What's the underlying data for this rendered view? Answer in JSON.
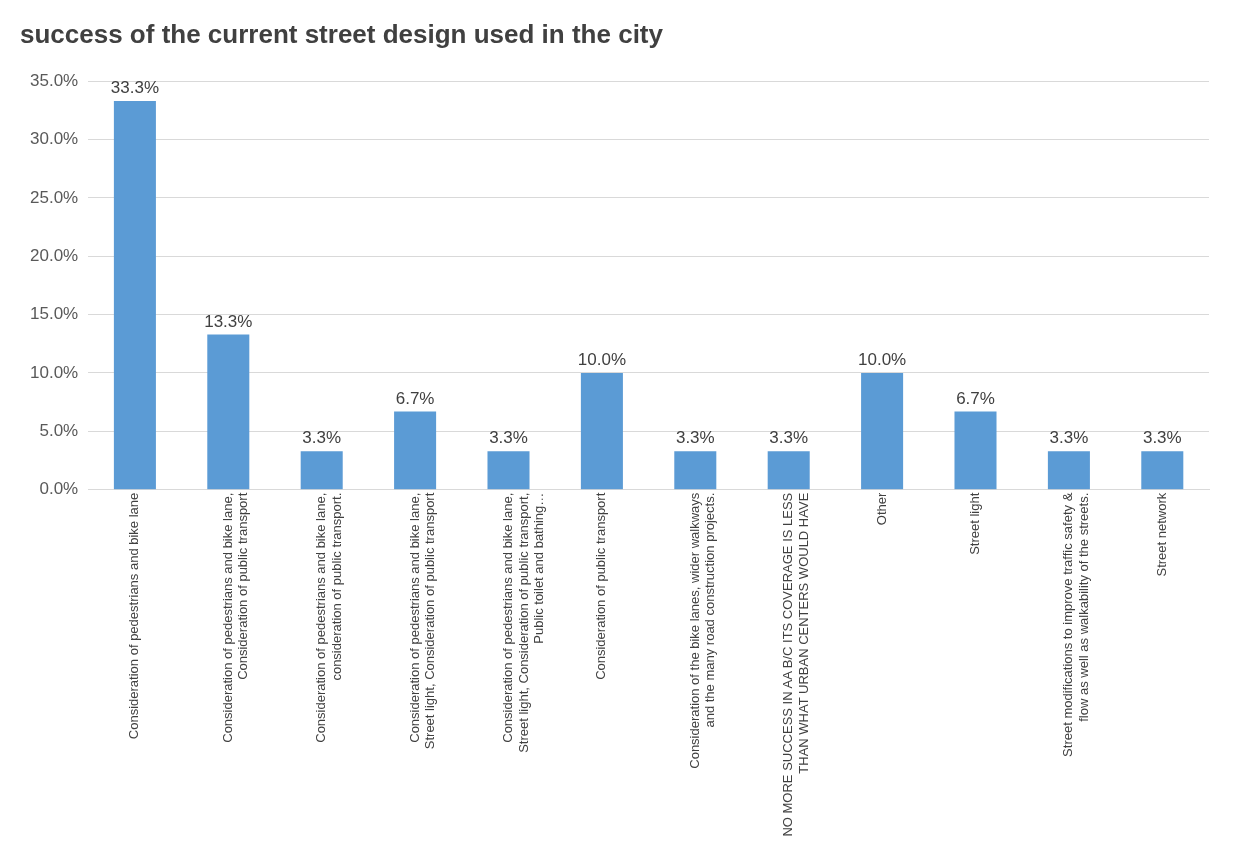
{
  "chart_data": {
    "type": "bar",
    "title": "success of the current street design used in the city",
    "categories": [
      "Consideration of pedestrians and bike lane",
      "Consideration of pedestrians and bike lane, Consideration of public transport",
      "Consideration of pedestrians and bike lane, consideration of public transport.",
      "Consideration of pedestrians and bike lane, Street light, Consideration of public transport",
      "Consideration of pedestrians and bike lane, Street light, Consideration of public transport, Public toilet and bathing…",
      "Consideration of public transport",
      "Consideration of the bike lanes, wider walkways and the many road construction projects.",
      "NO MORE SUCCESS IN AA B/C ITS COVERAGE IS LESS THAN WHAT URBAN CENTERS WOULD HAVE",
      "Other",
      "Street light",
      "Street modifications to improve traffic safety & flow as well as walkability of the streets.",
      "Street network"
    ],
    "values": [
      33.3,
      13.3,
      3.3,
      6.7,
      3.3,
      10.0,
      3.3,
      3.3,
      10.0,
      6.7,
      3.3,
      3.3
    ],
    "value_labels": [
      "33.3%",
      "13.3%",
      "3.3%",
      "6.7%",
      "3.3%",
      "10.0%",
      "3.3%",
      "3.3%",
      "10.0%",
      "6.7%",
      "3.3%",
      "3.3%"
    ],
    "color": "#5b9bd5",
    "ylim": [
      0,
      35
    ],
    "yticks": [
      {
        "value": 0,
        "label": "0.0%"
      },
      {
        "value": 5,
        "label": "5.0%"
      },
      {
        "value": 10,
        "label": "10.0%"
      },
      {
        "value": 15,
        "label": "15.0%"
      },
      {
        "value": 20,
        "label": "20.0%"
      },
      {
        "value": 25,
        "label": "25.0%"
      },
      {
        "value": 30,
        "label": "30.0%"
      },
      {
        "value": 35,
        "label": "35.0%"
      }
    ],
    "grid": "y"
  }
}
